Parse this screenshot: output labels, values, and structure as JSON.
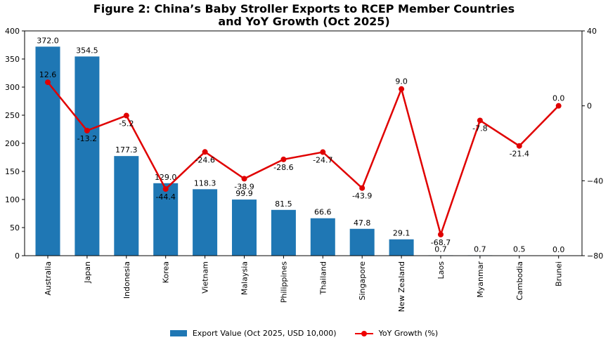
{
  "chart_data": {
    "type": "bar+line",
    "title": "Figure 2: China’s Baby Stroller Exports to RCEP Member Countries",
    "subtitle": "and YoY Growth (Oct 2025)",
    "categories": [
      "Australia",
      "Japan",
      "Indonesia",
      "Korea",
      "Vietnam",
      "Malaysia",
      "Philippines",
      "Thailand",
      "Singapore",
      "New Zealand",
      "Laos",
      "Myanmar",
      "Cambodia",
      "Brunei"
    ],
    "series": [
      {
        "name": "Export Value (Oct 2025, USD 10,000)",
        "type": "bar",
        "axis": "left",
        "color": "#1f77b4",
        "values": [
          372.0,
          354.5,
          177.3,
          129.0,
          118.3,
          99.9,
          81.5,
          66.6,
          47.8,
          29.1,
          0.7,
          0.7,
          0.5,
          0.0
        ],
        "labels": [
          "372.0",
          "354.5",
          "177.3",
          "129.0",
          "118.3",
          "99.9",
          "81.5",
          "66.6",
          "47.8",
          "29.1",
          "0.7",
          "0.7",
          "0.5",
          "0.0"
        ]
      },
      {
        "name": "YoY Growth (%)",
        "type": "line",
        "axis": "right",
        "color": "#e00000",
        "values": [
          12.6,
          -13.2,
          -5.2,
          -44.4,
          -24.6,
          -38.9,
          -28.6,
          -24.7,
          -43.9,
          9.0,
          -68.7,
          -7.8,
          -21.4,
          0.0
        ],
        "labels": [
          "12.6",
          "-13.2",
          "-5.2",
          "-44.4",
          "-24.6",
          "-38.9",
          "-28.6",
          "-24.7",
          "-43.9",
          "9.0",
          "-68.7",
          "-7.8",
          "-21.4",
          "0.0"
        ]
      }
    ],
    "ylim_left": [
      0,
      400
    ],
    "yticks_left": [
      "0",
      "50",
      "100",
      "150",
      "200",
      "250",
      "300",
      "350",
      "400"
    ],
    "ylim_right": [
      -80,
      40
    ],
    "yticks_right": [
      "−80",
      "−40",
      "0",
      "40"
    ],
    "grid": false,
    "legend_position": "bottom-center"
  }
}
